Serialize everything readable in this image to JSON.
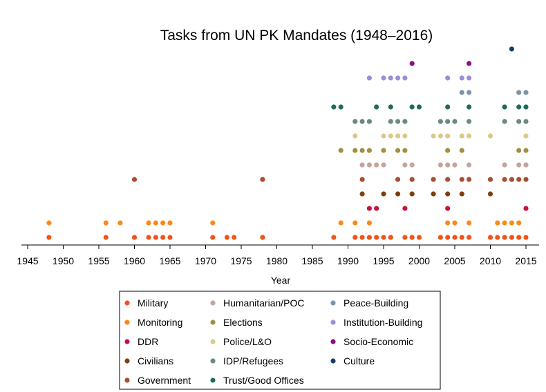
{
  "chart_data": {
    "type": "scatter",
    "title": "Tasks from UN PK Mandates (1948–2016)",
    "xlabel": "Year",
    "ylabel": "",
    "xlim": [
      1943,
      2017
    ],
    "x_ticks": [
      1945,
      1950,
      1955,
      1960,
      1965,
      1970,
      1975,
      1980,
      1985,
      1990,
      1995,
      2000,
      2005,
      2010,
      2015
    ],
    "legend_position": "bottom",
    "grid": false,
    "categories": [
      "Military",
      "Monitoring",
      "DDR",
      "Civilians",
      "Government",
      "Humanitarian/POC",
      "Elections",
      "Police/L&O",
      "IDP/Refugees",
      "Trust/Good Offices",
      "Peace-Building",
      "Institution-Building",
      "Socio-Economic",
      "Culture"
    ],
    "series": [
      {
        "name": "Military",
        "color": "#f0541b",
        "x": [
          1948,
          1956,
          1960,
          1962,
          1963,
          1964,
          1965,
          1971,
          1973,
          1974,
          1978,
          1988,
          1991,
          1992,
          1993,
          1994,
          1995,
          1996,
          1998,
          1999,
          2000,
          2003,
          2004,
          2005,
          2006,
          2007,
          2010,
          2011,
          2012,
          2013,
          2014,
          2015
        ]
      },
      {
        "name": "Monitoring",
        "color": "#f98a19",
        "x": [
          1948,
          1956,
          1958,
          1962,
          1963,
          1964,
          1965,
          1971,
          1989,
          1991,
          1993,
          2004,
          2005,
          2007,
          2011,
          2012,
          2013,
          2014
        ]
      },
      {
        "name": "DDR",
        "color": "#c5123f",
        "x": [
          1993,
          1994,
          1998,
          2004,
          2015
        ]
      },
      {
        "name": "Civilians",
        "color": "#7f3f0d",
        "x": [
          1992,
          1995,
          1997,
          1999,
          2002,
          2004,
          2006,
          2010
        ]
      },
      {
        "name": "Government",
        "color": "#a74e32",
        "x": [
          1960,
          1978,
          1992,
          1997,
          1999,
          2002,
          2004,
          2006,
          2007,
          2010,
          2012,
          2013,
          2014,
          2015
        ]
      },
      {
        "name": "Humanitarian/POC",
        "color": "#c6a39c",
        "x": [
          1992,
          1993,
          1994,
          1995,
          1998,
          1999,
          2003,
          2004,
          2005,
          2007,
          2012,
          2014,
          2015
        ]
      },
      {
        "name": "Elections",
        "color": "#a09040",
        "x": [
          1989,
          1991,
          1992,
          1993,
          1995,
          1997,
          1998,
          2004,
          2006,
          2014,
          2015
        ]
      },
      {
        "name": "Police/L&O",
        "color": "#d9ca88",
        "x": [
          1991,
          1995,
          1996,
          1997,
          1998,
          2002,
          2003,
          2004,
          2006,
          2007,
          2010,
          2015
        ]
      },
      {
        "name": "IDP/Refugees",
        "color": "#6b8a7e",
        "x": [
          1991,
          1992,
          1993,
          1996,
          1997,
          1998,
          2003,
          2004,
          2005,
          2007,
          2012,
          2014,
          2015
        ]
      },
      {
        "name": "Trust/Good Offices",
        "color": "#1f6b5e",
        "x": [
          1988,
          1989,
          1994,
          1996,
          1999,
          2000,
          2004,
          2007,
          2012,
          2014,
          2015
        ]
      },
      {
        "name": "Peace-Building",
        "color": "#7b94ab",
        "x": [
          2006,
          2007,
          2014,
          2015
        ]
      },
      {
        "name": "Institution-Building",
        "color": "#9a8fd6",
        "x": [
          1993,
          1995,
          1996,
          1997,
          1998,
          2004,
          2006,
          2007
        ]
      },
      {
        "name": "Socio-Economic",
        "color": "#8a0f7f",
        "x": [
          1999,
          2007
        ]
      },
      {
        "name": "Culture",
        "color": "#173f66",
        "x": [
          2013
        ]
      }
    ]
  }
}
